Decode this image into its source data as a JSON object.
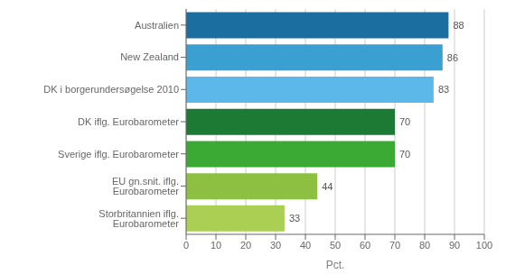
{
  "chart_data": {
    "type": "bar",
    "orientation": "horizontal",
    "categories": [
      "Storbritannien iflg. Eurobarometer",
      "EU gn.snit. iflg. Eurobarometer",
      "Sverige iflg. Eurobarometer",
      "DK iflg. Eurobarometer",
      "DK i borgerundersøgelse 2010",
      "New Zealand",
      "Australien"
    ],
    "values": [
      33,
      44,
      70,
      70,
      83,
      86,
      88
    ],
    "colors": [
      "#aacf53",
      "#8dc040",
      "#3aaa35",
      "#1d7a34",
      "#5bb8e8",
      "#3aa0d2",
      "#1a6fa0"
    ],
    "xlabel": "Pct.",
    "xlim": [
      0,
      100
    ],
    "xticks": [
      0,
      10,
      20,
      30,
      40,
      50,
      60,
      70,
      80,
      90,
      100
    ],
    "grid": true,
    "data_labels": true
  }
}
